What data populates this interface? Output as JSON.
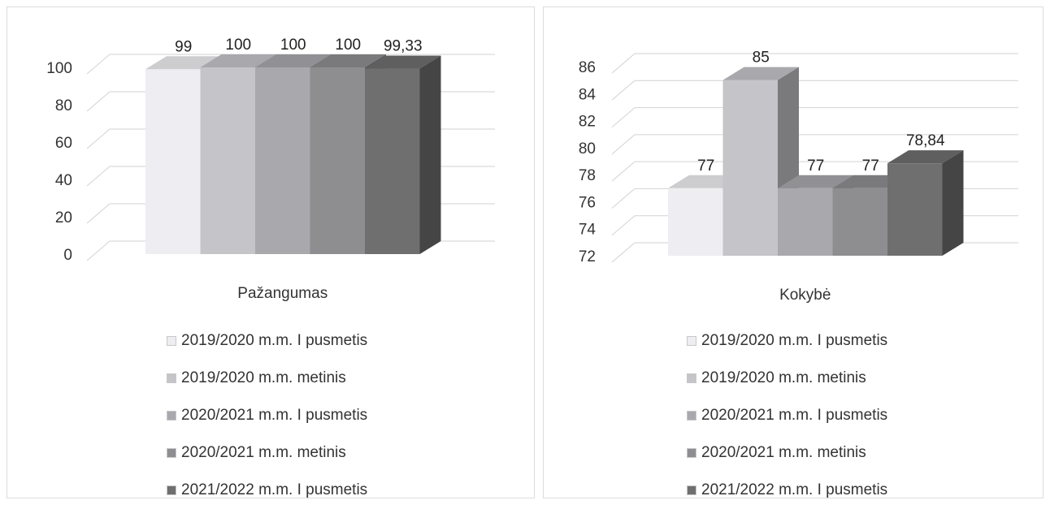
{
  "legend": [
    "2019/2020 m.m. I pusmetis",
    "2019/2020 m.m. metinis",
    "2020/2021 m.m. I pusmetis",
    "2020/2021 m.m. metinis",
    "2021/2022 m.m. I pusmetis"
  ],
  "series_colors": [
    "#eeeef2",
    "#c4c4c9",
    "#a9a9ad",
    "#8e8e91",
    "#6f6f70"
  ],
  "chart_data": [
    {
      "type": "bar",
      "title": "",
      "xlabel": "Pažangumas",
      "ylabel": "",
      "ylim": [
        0,
        100
      ],
      "yticks": [
        0,
        20,
        40,
        60,
        80,
        100
      ],
      "grid": true,
      "legend_position": "bottom",
      "categories": [
        "Pažangumas"
      ],
      "series": [
        {
          "name": "2019/2020 m.m. I pusmetis",
          "values": [
            99
          ],
          "label": "99"
        },
        {
          "name": "2019/2020 m.m. metinis",
          "values": [
            100
          ],
          "label": "100"
        },
        {
          "name": "2020/2021 m.m. I pusmetis",
          "values": [
            100
          ],
          "label": "100"
        },
        {
          "name": "2020/2021 m.m. metinis",
          "values": [
            100
          ],
          "label": "100"
        },
        {
          "name": "2021/2022 m.m. I pusmetis",
          "values": [
            99.33
          ],
          "label": "99,33"
        }
      ]
    },
    {
      "type": "bar",
      "title": "",
      "xlabel": "Kokybė",
      "ylabel": "",
      "ylim": [
        72,
        86
      ],
      "yticks": [
        72,
        74,
        76,
        78,
        80,
        82,
        84,
        86
      ],
      "grid": true,
      "legend_position": "bottom",
      "categories": [
        "Kokybė"
      ],
      "series": [
        {
          "name": "2019/2020 m.m. I pusmetis",
          "values": [
            77
          ],
          "label": "77"
        },
        {
          "name": "2019/2020 m.m. metinis",
          "values": [
            85
          ],
          "label": "85"
        },
        {
          "name": "2020/2021 m.m. I pusmetis",
          "values": [
            77
          ],
          "label": "77"
        },
        {
          "name": "2020/2021 m.m. metinis",
          "values": [
            77
          ],
          "label": "77"
        },
        {
          "name": "2021/2022 m.m. I pusmetis",
          "values": [
            78.84
          ],
          "label": "78,84"
        }
      ]
    }
  ]
}
